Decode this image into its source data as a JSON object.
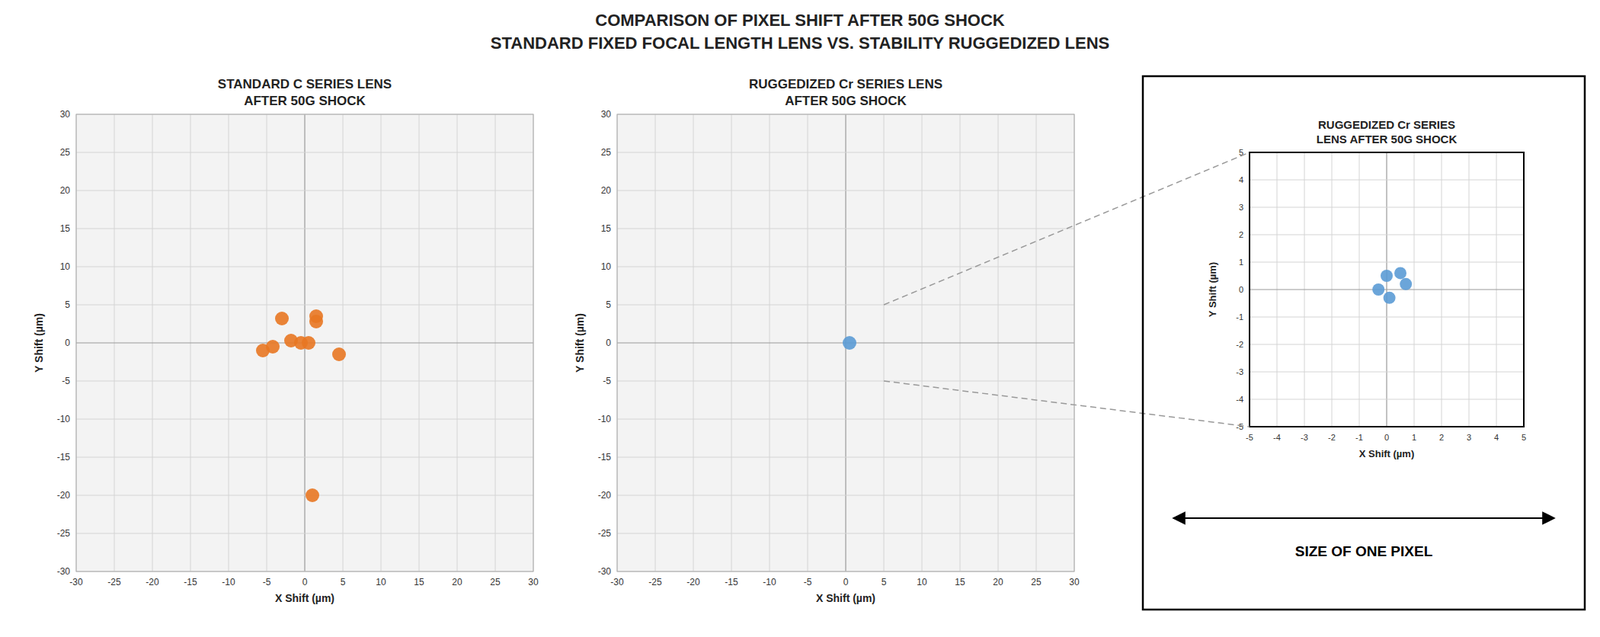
{
  "title": "COMPARISON OF PIXEL SHIFT AFTER 50G SHOCK",
  "subtitle": "STANDARD FIXED FOCAL LENGTH LENS VS. STABILITY RUGGEDIZED LENS",
  "chart_data": [
    {
      "type": "scatter",
      "title": "STANDARD C SERIES LENS\nAFTER 50G SHOCK",
      "x_label": "X Shift (µm)",
      "y_label": "Y Shift (µm)",
      "x": [
        -5.5,
        -4.2,
        -3.0,
        -1.8,
        -0.5,
        0.5,
        1.5,
        4.5,
        1.5,
        1.0
      ],
      "values": [
        -1.0,
        -0.5,
        3.2,
        0.3,
        0.0,
        0.0,
        3.5,
        -1.5,
        2.8,
        -20.0
      ],
      "color": "#E87722",
      "xlim": [
        -30,
        30
      ],
      "ylim": [
        -30,
        30
      ],
      "xticks": [
        -30,
        -25,
        -20,
        -15,
        -10,
        -5,
        0,
        5,
        10,
        15,
        20,
        25,
        30
      ],
      "yticks": [
        -30,
        -25,
        -20,
        -15,
        -10,
        -5,
        0,
        5,
        10,
        15,
        20,
        25,
        30
      ],
      "grid": true
    },
    {
      "type": "scatter",
      "title": "RUGGEDIZED Cr SERIES LENS\nAFTER 50G SHOCK",
      "x_label": "X Shift (µm)",
      "y_label": "Y Shift (µm)",
      "x": [
        0.5
      ],
      "values": [
        0.0
      ],
      "color": "#5B9BD5",
      "xlim": [
        -30,
        30
      ],
      "ylim": [
        -30,
        30
      ],
      "xticks": [
        -30,
        -25,
        -20,
        -15,
        -10,
        -5,
        0,
        5,
        10,
        15,
        20,
        25,
        30
      ],
      "yticks": [
        -30,
        -25,
        -20,
        -15,
        -10,
        -5,
        0,
        5,
        10,
        15,
        20,
        25,
        30
      ],
      "grid": true
    },
    {
      "type": "scatter",
      "title": "RUGGEDIZED Cr SERIES\nLENS AFTER 50G SHOCK",
      "x_label": "X Shift (µm)",
      "y_label": "Y Shift (µm)",
      "x": [
        -0.3,
        0.0,
        0.5,
        0.7,
        0.1
      ],
      "values": [
        0.0,
        0.5,
        0.6,
        0.2,
        -0.3
      ],
      "color": "#5B9BD5",
      "xlim": [
        -5,
        5
      ],
      "ylim": [
        -5,
        5
      ],
      "xticks": [
        -5,
        -4,
        -3,
        -2,
        -1,
        0,
        1,
        2,
        3,
        4,
        5
      ],
      "yticks": [
        -5,
        -4,
        -3,
        -2,
        -1,
        0,
        1,
        2,
        3,
        4,
        5
      ],
      "grid": true,
      "annotations": [
        "SIZE OF ONE PIXEL"
      ]
    }
  ]
}
